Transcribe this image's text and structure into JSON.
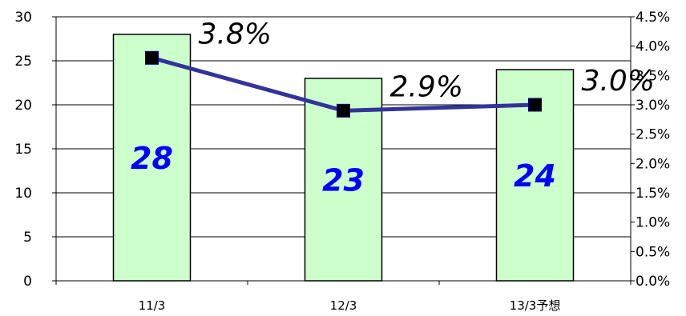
{
  "chart_data": {
    "type": "bar+line",
    "categories": [
      "11/3",
      "12/3",
      "13/3予想"
    ],
    "bars": {
      "values": [
        28,
        23,
        24
      ],
      "labels": [
        "28",
        "23",
        "24"
      ],
      "ylim": [
        0,
        30
      ],
      "yticks": [
        "0",
        "5",
        "10",
        "15",
        "20",
        "25",
        "30"
      ]
    },
    "line": {
      "values": [
        3.8,
        2.9,
        3.0
      ],
      "labels": [
        "3.8%",
        "2.9%",
        "3.0%"
      ],
      "ylim": [
        0,
        4.5
      ],
      "yticks": [
        "0.0%",
        "0.5%",
        "1.0%",
        "1.5%",
        "2.0%",
        "2.5%",
        "3.0%",
        "3.5%",
        "4.0%",
        "4.5%"
      ]
    },
    "grid": true,
    "colors": {
      "bar_fill": "#CCFFCC",
      "bar_stroke": "#000000",
      "bar_label": "#0000FF",
      "line": "#333399",
      "marker": "#000000",
      "grid": "#000000"
    }
  }
}
